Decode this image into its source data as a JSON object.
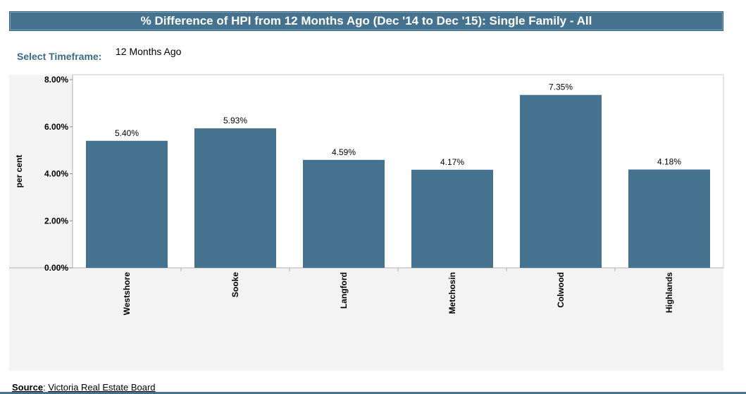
{
  "header": {
    "title": "% Difference of HPI from 12 Months Ago (Dec '14 to Dec '15): Single Family - All"
  },
  "timeframe": {
    "label": "Select Timeframe:",
    "value": "12 Months Ago"
  },
  "source": {
    "label": "Source",
    "value": "Victoria Real Estate Board"
  },
  "colors": {
    "bar": "#45738f",
    "panel": "#f3f3f3",
    "title_bar": "#45738f"
  },
  "chart_data": {
    "type": "bar",
    "categories": [
      "Westshore",
      "Sooke",
      "Langford",
      "Metchosin",
      "Colwood",
      "Highlands"
    ],
    "values": [
      5.4,
      5.93,
      4.59,
      4.17,
      7.35,
      4.18
    ],
    "value_labels": [
      "5.40%",
      "5.93%",
      "4.59%",
      "4.17%",
      "7.35%",
      "4.18%"
    ],
    "ylabel": "per cent",
    "xlabel": "",
    "ylim": [
      0,
      8
    ],
    "yticks": [
      0,
      2,
      4,
      6,
      8
    ],
    "ytick_labels": [
      "0.00%",
      "2.00%",
      "4.00%",
      "6.00%",
      "8.00%"
    ],
    "grid": false,
    "legend": "none"
  }
}
